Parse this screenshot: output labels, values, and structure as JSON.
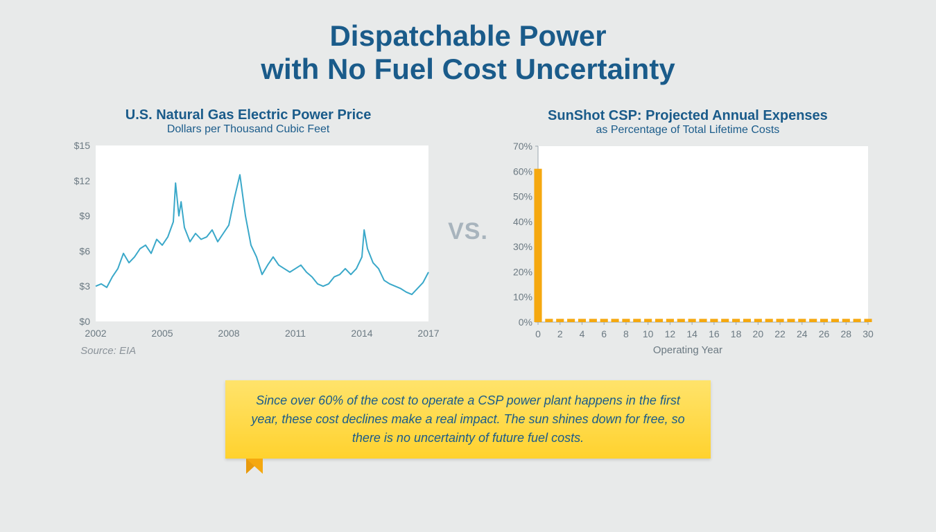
{
  "title_line1": "Dispatchable Power",
  "title_line2": "with No Fuel Cost Uncertainty",
  "vs_label": "VS.",
  "callout_text": "Since over 60% of the cost to operate a CSP power plant happens in the first year, these cost declines make a real impact. The sun shines down for free, so there is no uncertainty of future fuel costs.",
  "background_color": "#e8eaea",
  "title_color": "#1a5b8a",
  "vs_color": "#a8b4bd",
  "callout_bg_top": "#ffe36b",
  "callout_bg_bottom": "#ffd22e",
  "callout_fold_color": "#e89a0c",
  "left_chart": {
    "type": "line",
    "title": "U.S. Natural Gas Electric Power Price",
    "subtitle": "Dollars per Thousand Cubic Feet",
    "source": "Source: EIA",
    "plot_bg": "#ffffff",
    "line_color": "#3aa8c9",
    "line_width": 2,
    "axis_text_color": "#6b7982",
    "ylim": [
      0,
      15
    ],
    "yticks": [
      0,
      3,
      6,
      9,
      12,
      15
    ],
    "ytick_labels": [
      "$0",
      "$3",
      "$6",
      "$9",
      "$12",
      "$15"
    ],
    "xlim": [
      2002,
      2017
    ],
    "xticks": [
      2002,
      2005,
      2008,
      2011,
      2014,
      2017
    ],
    "series_x": [
      2002.0,
      2002.25,
      2002.5,
      2002.75,
      2003.0,
      2003.25,
      2003.5,
      2003.75,
      2004.0,
      2004.25,
      2004.5,
      2004.75,
      2005.0,
      2005.25,
      2005.5,
      2005.6,
      2005.75,
      2005.85,
      2006.0,
      2006.25,
      2006.5,
      2006.75,
      2007.0,
      2007.25,
      2007.5,
      2007.75,
      2008.0,
      2008.25,
      2008.5,
      2008.75,
      2009.0,
      2009.25,
      2009.5,
      2009.75,
      2010.0,
      2010.25,
      2010.5,
      2010.75,
      2011.0,
      2011.25,
      2011.5,
      2011.75,
      2012.0,
      2012.25,
      2012.5,
      2012.75,
      2013.0,
      2013.25,
      2013.5,
      2013.75,
      2014.0,
      2014.1,
      2014.25,
      2014.5,
      2014.75,
      2015.0,
      2015.25,
      2015.5,
      2015.75,
      2016.0,
      2016.25,
      2016.5,
      2016.75,
      2017.0
    ],
    "series_y": [
      3.0,
      3.2,
      2.9,
      3.8,
      4.5,
      5.8,
      5.0,
      5.5,
      6.2,
      6.5,
      5.8,
      7.0,
      6.5,
      7.2,
      8.5,
      11.8,
      9.0,
      10.2,
      8.0,
      6.8,
      7.5,
      7.0,
      7.2,
      7.8,
      6.8,
      7.5,
      8.2,
      10.5,
      12.5,
      9.0,
      6.5,
      5.5,
      4.0,
      4.8,
      5.5,
      4.8,
      4.5,
      4.2,
      4.5,
      4.8,
      4.2,
      3.8,
      3.2,
      3.0,
      3.2,
      3.8,
      4.0,
      4.5,
      4.0,
      4.5,
      5.5,
      7.8,
      6.2,
      5.0,
      4.5,
      3.5,
      3.2,
      3.0,
      2.8,
      2.5,
      2.3,
      2.8,
      3.3,
      4.2
    ]
  },
  "right_chart": {
    "type": "bar",
    "title": "SunShot CSP: Projected Annual Expenses",
    "subtitle": "as Percentage of Total Lifetime Costs",
    "x_axis_label": "Operating Year",
    "plot_bg": "#ffffff",
    "bar_color": "#f5a80f",
    "axis_text_color": "#6b7982",
    "axis_line_color": "#9aa5ad",
    "ylim": [
      0,
      70
    ],
    "yticks": [
      0,
      10,
      20,
      30,
      40,
      50,
      60,
      70
    ],
    "ytick_labels": [
      "0%",
      "10%",
      "20%",
      "30%",
      "40%",
      "50%",
      "60%",
      "70%"
    ],
    "xlim": [
      0,
      30
    ],
    "xticks": [
      0,
      2,
      4,
      6,
      8,
      10,
      12,
      14,
      16,
      18,
      20,
      22,
      24,
      26,
      28,
      30
    ],
    "bar_width": 0.7,
    "series_x": [
      0,
      1,
      2,
      3,
      4,
      5,
      6,
      7,
      8,
      9,
      10,
      11,
      12,
      13,
      14,
      15,
      16,
      17,
      18,
      19,
      20,
      21,
      22,
      23,
      24,
      25,
      26,
      27,
      28,
      29,
      30
    ],
    "series_y": [
      61,
      1.3,
      1.3,
      1.3,
      1.3,
      1.3,
      1.3,
      1.3,
      1.3,
      1.3,
      1.3,
      1.3,
      1.3,
      1.3,
      1.3,
      1.3,
      1.3,
      1.3,
      1.3,
      1.3,
      1.3,
      1.3,
      1.3,
      1.3,
      1.3,
      1.3,
      1.3,
      1.3,
      1.3,
      1.3,
      1.3
    ]
  }
}
